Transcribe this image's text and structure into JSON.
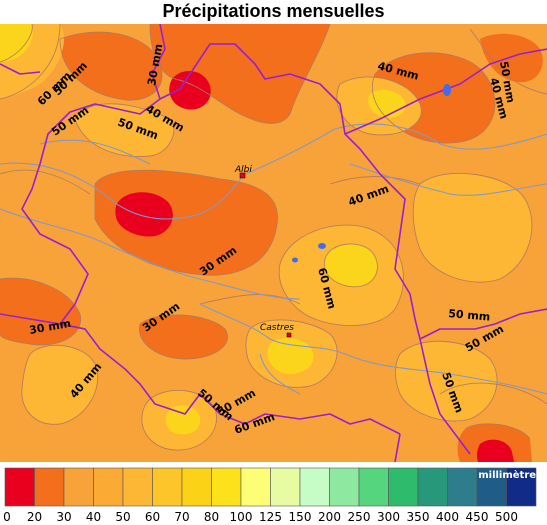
{
  "title": "Précipitations mensuelles",
  "colors": {
    "base": "#f8a23a",
    "dark": "#f36f1c",
    "light": "#fdb735",
    "yellow": "#fbd51c",
    "red": "#e8001e",
    "border": "#9a1fcf",
    "river": "#8597c8",
    "contour": "#b07a60",
    "lake": "#3e6cf2"
  },
  "cities": [
    {
      "name": "Albi"
    },
    {
      "name": "Castres"
    }
  ],
  "contour_labels": [
    "60 mm",
    "50 mm",
    "30 mm",
    "50 mm",
    "40 mm",
    "50 mm",
    "40 mm",
    "50 mm",
    "40 mm",
    "60 mm",
    "40 mm",
    "30 mm",
    "30 mm",
    "30 mm",
    "40 mm",
    "50 mm",
    "50 mm",
    "50 mm",
    "60 mm",
    "50 mm",
    "50 mm"
  ],
  "legend": {
    "unit_label": "millimètres",
    "ticks": [
      "0",
      "20",
      "30",
      "40",
      "50",
      "60",
      "70",
      "80",
      "100",
      "125",
      "150",
      "200",
      "250",
      "300",
      "350",
      "400",
      "450",
      "500"
    ],
    "colors": [
      "#e8001e",
      "#f36f1c",
      "#f8a23a",
      "#fbaa34",
      "#fdb735",
      "#fdc52a",
      "#fcd216",
      "#fde11a",
      "#fefe76",
      "#e7fca2",
      "#c6fcc6",
      "#8fe8a0",
      "#55d57d",
      "#2ebb6c",
      "#28987a",
      "#2d7d8c",
      "#1f5c88",
      "#102c88"
    ]
  }
}
